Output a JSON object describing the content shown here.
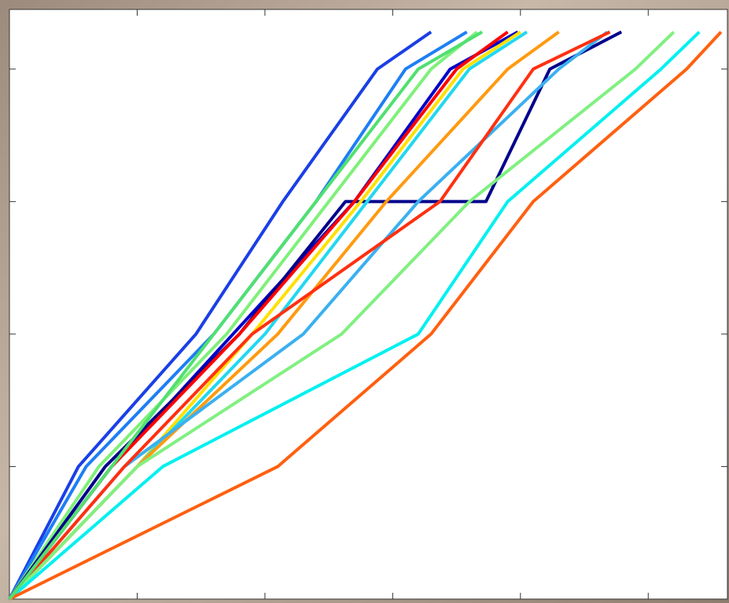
{
  "chart_data": {
    "type": "line",
    "grid": false,
    "xlim": [
      0,
      5.62
    ],
    "ylim": [
      0,
      4.45
    ],
    "xticks": [
      1,
      2,
      3,
      4,
      5
    ],
    "yticks": [
      1,
      2,
      3,
      4
    ],
    "series": [
      {
        "color": "#1a3fe6",
        "x": [
          0,
          0.54,
          1.46,
          2.14,
          2.88,
          3.3
        ],
        "values": [
          0,
          1,
          2,
          3,
          4,
          4.28
        ]
      },
      {
        "color": "#1e7ef5",
        "x": [
          0,
          0.6,
          1.6,
          2.4,
          3.1,
          3.58
        ],
        "values": [
          0,
          1,
          2,
          3,
          4,
          4.28
        ]
      },
      {
        "color": "#7ff07a",
        "x": [
          0,
          0.7,
          1.7,
          2.5,
          3.3,
          3.66
        ],
        "values": [
          0,
          1,
          2,
          3,
          4,
          4.28
        ]
      },
      {
        "color": "#0000c8",
        "x": [
          0,
          0.8,
          1.75,
          2.7,
          3.45,
          3.98
        ],
        "values": [
          0,
          1,
          2,
          3,
          4,
          4.28
        ]
      },
      {
        "color": "#00008b",
        "x": [
          0,
          0.75,
          1.8,
          2.63,
          3.73,
          4.23,
          4.79
        ],
        "values": [
          0,
          1,
          2,
          3,
          3,
          4,
          4.28
        ]
      },
      {
        "color": "#ff0000",
        "x": [
          0,
          0.8,
          1.8,
          2.7,
          3.5,
          3.9
        ],
        "values": [
          0,
          1,
          2,
          3,
          4,
          4.28
        ]
      },
      {
        "color": "#ffe000",
        "x": [
          0,
          1.0,
          1.9,
          2.75,
          3.55,
          4.0
        ],
        "values": [
          0,
          1,
          2,
          3,
          4,
          4.28
        ]
      },
      {
        "color": "#22d8f0",
        "x": [
          0,
          1.0,
          2.0,
          2.8,
          3.6,
          4.05
        ],
        "values": [
          0,
          1,
          2,
          3,
          4,
          4.28
        ]
      },
      {
        "color": "#ff9a10",
        "x": [
          0,
          1.0,
          2.1,
          2.95,
          3.9,
          4.3
        ],
        "values": [
          0,
          1,
          2,
          3,
          4,
          4.28
        ]
      },
      {
        "color": "#3ab0f0",
        "x": [
          0,
          0.9,
          2.3,
          3.2,
          4.3,
          4.68
        ],
        "values": [
          0,
          1,
          2,
          3,
          4,
          4.28
        ]
      },
      {
        "color": "#ff3010",
        "x": [
          0,
          0.9,
          1.9,
          3.37,
          4.1,
          4.7
        ],
        "values": [
          0,
          1,
          2,
          3,
          4,
          4.28
        ]
      },
      {
        "color": "#80f080",
        "x": [
          0,
          1.0,
          2.6,
          3.6,
          4.9,
          5.2
        ],
        "values": [
          0,
          1,
          2,
          3,
          4,
          4.28
        ]
      },
      {
        "color": "#00f0f0",
        "x": [
          0,
          1.2,
          3.2,
          3.9,
          5.1,
          5.4
        ],
        "values": [
          0,
          1,
          2,
          3,
          4,
          4.28
        ]
      },
      {
        "color": "#ff6010",
        "x": [
          0,
          2.1,
          3.3,
          4.1,
          5.3,
          5.57
        ],
        "values": [
          0,
          1,
          2,
          3,
          4,
          4.28
        ]
      },
      {
        "color": "#50e070",
        "x": [
          0,
          0.8,
          1.6,
          2.4,
          3.2,
          3.7
        ],
        "values": [
          0,
          1,
          2,
          3,
          4,
          4.28
        ]
      }
    ]
  }
}
